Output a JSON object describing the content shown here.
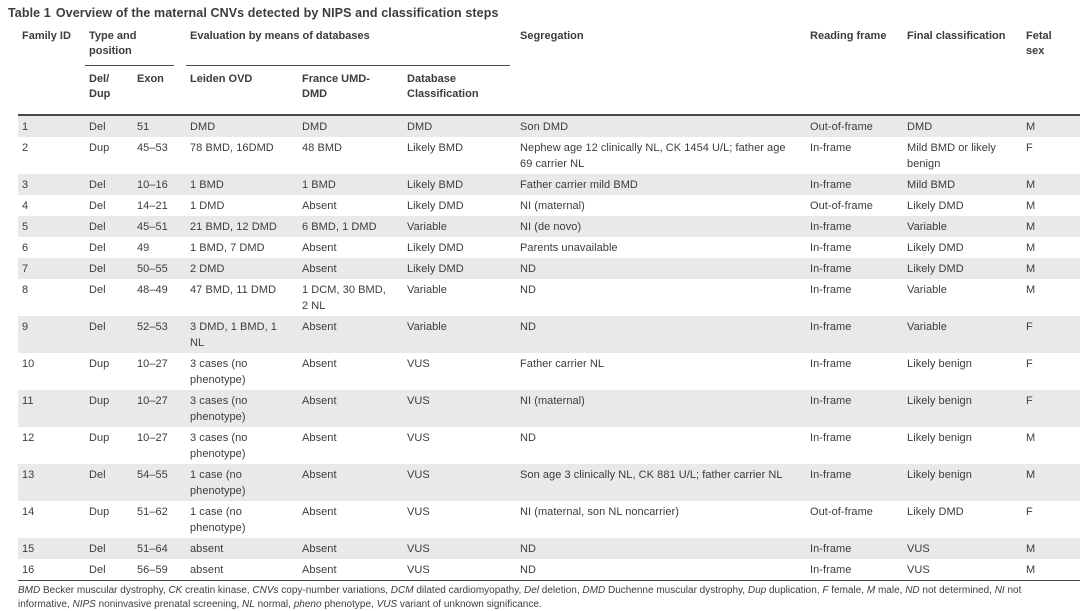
{
  "title": {
    "prefix": "Table 1",
    "text": "Overview of the maternal CNVs detected by NIPS and classification steps"
  },
  "table": {
    "headers": {
      "family_id": "Family ID",
      "type_position_group": "Type and\nposition",
      "databases_group": "Evaluation by means of databases",
      "segregation": "Segregation",
      "reading_frame": "Reading frame",
      "final_classification": "Final classification",
      "fetal_sex": "Fetal sex",
      "del_dup": "Del/\nDup",
      "exon": "Exon",
      "leiden_ovd": "Leiden OVD",
      "france_umd": "France UMD-\nDMD",
      "db_classification": "Database\nClassification"
    },
    "rows": [
      {
        "family_id": "1",
        "del_dup": "Del",
        "exon": "51",
        "leiden_ovd": "DMD",
        "france_umd": "DMD",
        "db_classification": "DMD",
        "segregation": "Son DMD",
        "reading_frame": "Out-of-frame",
        "final_classification": "DMD",
        "fetal_sex": "M"
      },
      {
        "family_id": "2",
        "del_dup": "Dup",
        "exon": "45–53",
        "leiden_ovd": "78 BMD, 16DMD",
        "france_umd": "48 BMD",
        "db_classification": "Likely BMD",
        "segregation": "Nephew age 12 clinically NL, CK 1454 U/L; father age 69 carrier NL",
        "reading_frame": "In-frame",
        "final_classification": "Mild BMD or likely benign",
        "fetal_sex": "F"
      },
      {
        "family_id": "3",
        "del_dup": "Del",
        "exon": "10–16",
        "leiden_ovd": "1 BMD",
        "france_umd": "1 BMD",
        "db_classification": "Likely BMD",
        "segregation": "Father carrier mild BMD",
        "reading_frame": "In-frame",
        "final_classification": "Mild BMD",
        "fetal_sex": "M"
      },
      {
        "family_id": "4",
        "del_dup": "Del",
        "exon": "14–21",
        "leiden_ovd": "1 DMD",
        "france_umd": "Absent",
        "db_classification": "Likely DMD",
        "segregation": "NI (maternal)",
        "reading_frame": "Out-of-frame",
        "final_classification": "Likely DMD",
        "fetal_sex": "M"
      },
      {
        "family_id": "5",
        "del_dup": "Del",
        "exon": "45–51",
        "leiden_ovd": "21 BMD, 12 DMD",
        "france_umd": "6 BMD, 1 DMD",
        "db_classification": "Variable",
        "segregation": "NI (de novo)",
        "reading_frame": "In-frame",
        "final_classification": "Variable",
        "fetal_sex": "M"
      },
      {
        "family_id": "6",
        "del_dup": "Del",
        "exon": "49",
        "leiden_ovd": "1 BMD, 7 DMD",
        "france_umd": "Absent",
        "db_classification": "Likely DMD",
        "segregation": "Parents unavailable",
        "reading_frame": "In-frame",
        "final_classification": "Likely DMD",
        "fetal_sex": "M"
      },
      {
        "family_id": "7",
        "del_dup": "Del",
        "exon": "50–55",
        "leiden_ovd": "2 DMD",
        "france_umd": "Absent",
        "db_classification": "Likely DMD",
        "segregation": "ND",
        "reading_frame": "In-frame",
        "final_classification": "Likely DMD",
        "fetal_sex": "M"
      },
      {
        "family_id": "8",
        "del_dup": "Del",
        "exon": "48–49",
        "leiden_ovd": "47 BMD, 11 DMD",
        "france_umd": "1 DCM, 30 BMD, 2 NL",
        "db_classification": "Variable",
        "segregation": "ND",
        "reading_frame": "In-frame",
        "final_classification": "Variable",
        "fetal_sex": "M"
      },
      {
        "family_id": "9",
        "del_dup": "Del",
        "exon": "52–53",
        "leiden_ovd": "3 DMD, 1 BMD, 1 NL",
        "france_umd": "Absent",
        "db_classification": "Variable",
        "segregation": "ND",
        "reading_frame": "In-frame",
        "final_classification": "Variable",
        "fetal_sex": "F"
      },
      {
        "family_id": "10",
        "del_dup": "Dup",
        "exon": "10–27",
        "leiden_ovd": "3 cases (no phenotype)",
        "france_umd": "Absent",
        "db_classification": "VUS",
        "segregation": "Father carrier NL",
        "reading_frame": "In-frame",
        "final_classification": "Likely benign",
        "fetal_sex": "F"
      },
      {
        "family_id": "11",
        "del_dup": "Dup",
        "exon": "10–27",
        "leiden_ovd": "3 cases (no phenotype)",
        "france_umd": "Absent",
        "db_classification": "VUS",
        "segregation": "NI (maternal)",
        "reading_frame": "In-frame",
        "final_classification": "Likely benign",
        "fetal_sex": "F"
      },
      {
        "family_id": "12",
        "del_dup": "Dup",
        "exon": "10–27",
        "leiden_ovd": "3 cases (no phenotype)",
        "france_umd": "Absent",
        "db_classification": "VUS",
        "segregation": "ND",
        "reading_frame": "In-frame",
        "final_classification": "Likely benign",
        "fetal_sex": "M"
      },
      {
        "family_id": "13",
        "del_dup": "Del",
        "exon": "54–55",
        "leiden_ovd": "1 case (no phenotype)",
        "france_umd": "Absent",
        "db_classification": "VUS",
        "segregation": "Son age 3 clinically NL, CK 881 U/L; father carrier NL",
        "reading_frame": "In-frame",
        "final_classification": "Likely benign",
        "fetal_sex": "M"
      },
      {
        "family_id": "14",
        "del_dup": "Dup",
        "exon": "51–62",
        "leiden_ovd": "1 case (no phenotype)",
        "france_umd": "Absent",
        "db_classification": "VUS",
        "segregation": "NI (maternal, son NL noncarrier)",
        "reading_frame": "Out-of-frame",
        "final_classification": "Likely DMD",
        "fetal_sex": "F"
      },
      {
        "family_id": "15",
        "del_dup": "Del",
        "exon": "51–64",
        "leiden_ovd": "absent",
        "france_umd": "Absent",
        "db_classification": "VUS",
        "segregation": "ND",
        "reading_frame": "In-frame",
        "final_classification": "VUS",
        "fetal_sex": "M"
      },
      {
        "family_id": "16",
        "del_dup": "Del",
        "exon": "56–59",
        "leiden_ovd": "absent",
        "france_umd": "Absent",
        "db_classification": "VUS",
        "segregation": "ND",
        "reading_frame": "In-frame",
        "final_classification": "VUS",
        "fetal_sex": "M"
      }
    ]
  },
  "footnote": {
    "abbreviations": [
      {
        "term": "BMD",
        "def": "Becker muscular dystrophy"
      },
      {
        "term": "CK",
        "def": "creatin kinase"
      },
      {
        "term": "CNVs",
        "def": "copy-number variations"
      },
      {
        "term": "DCM",
        "def": "dilated cardiomyopathy"
      },
      {
        "term": "Del",
        "def": "deletion"
      },
      {
        "term": "DMD",
        "def": "Duchenne muscular dystrophy"
      },
      {
        "term": "Dup",
        "def": "duplication"
      },
      {
        "term": "F",
        "def": "female"
      },
      {
        "term": "M",
        "def": "male"
      },
      {
        "term": "ND",
        "def": "not determined"
      },
      {
        "term": "NI",
        "def": "not informative"
      },
      {
        "term": "NIPS",
        "def": "noninvasive prenatal screening"
      },
      {
        "term": "NL",
        "def": "normal"
      },
      {
        "term": "pheno",
        "def": "phenotype"
      },
      {
        "term": "VUS",
        "def": "variant of unknown significance"
      }
    ]
  }
}
